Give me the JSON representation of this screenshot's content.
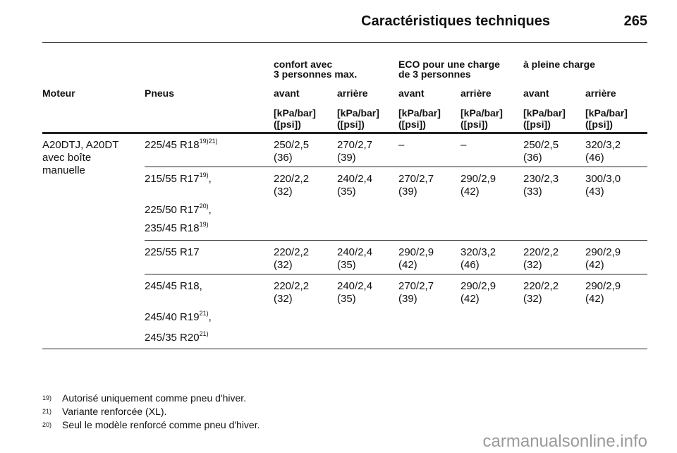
{
  "header": {
    "title": "Caractéristiques techniques",
    "page": "265"
  },
  "table": {
    "group_headers": [
      [
        "confort avec",
        "3 personnes max."
      ],
      [
        "ECO pour une charge",
        "de 3 personnes"
      ],
      [
        "à pleine charge"
      ]
    ],
    "columns": [
      "Moteur",
      "Pneus",
      "avant",
      "arrière",
      "avant",
      "arrière",
      "avant",
      "arrière"
    ],
    "units": [
      [
        "[kPa/bar]",
        "([psi])"
      ],
      [
        "[kPa/bar]",
        "([psi])"
      ],
      [
        "[kPa/bar]",
        "([psi])"
      ],
      [
        "[kPa/bar]",
        "([psi])"
      ],
      [
        "[kPa/bar]",
        "([psi])"
      ],
      [
        "[kPa/bar]",
        "([psi])"
      ]
    ],
    "engine": [
      "A20DTJ, A20DT",
      "avec boîte",
      "manuelle"
    ],
    "groups": [
      {
        "tires": [
          {
            "text": "225/45 R18",
            "sup": "19)21)"
          }
        ],
        "values": [
          [
            "250/2,5",
            "(36)"
          ],
          [
            "270/2,7",
            "(39)"
          ],
          [
            "–"
          ],
          [
            "–"
          ],
          [
            "250/2,5",
            "(36)"
          ],
          [
            "320/3,2",
            "(46)"
          ]
        ]
      },
      {
        "tires": [
          {
            "text": "215/55 R17",
            "sup": "19)",
            "suffix": ","
          },
          {
            "text": "225/50 R17",
            "sup": "20)",
            "suffix": ","
          },
          {
            "text": "235/45 R18",
            "sup": "19)"
          }
        ],
        "values": [
          [
            "220/2,2",
            "(32)"
          ],
          [
            "240/2,4",
            "(35)"
          ],
          [
            "270/2,7",
            "(39)"
          ],
          [
            "290/2,9",
            "(42)"
          ],
          [
            "230/2,3",
            "(33)"
          ],
          [
            "300/3,0",
            "(43)"
          ]
        ]
      },
      {
        "tires": [
          {
            "text": "225/55 R17"
          }
        ],
        "values": [
          [
            "220/2,2",
            "(32)"
          ],
          [
            "240/2,4",
            "(35)"
          ],
          [
            "290/2,9",
            "(42)"
          ],
          [
            "320/3,2",
            "(46)"
          ],
          [
            "220/2,2",
            "(32)"
          ],
          [
            "290/2,9",
            "(42)"
          ]
        ]
      },
      {
        "tires": [
          {
            "text": "245/45 R18,"
          },
          {
            "text": "245/40 R19",
            "sup": "21)",
            "suffix": ","
          },
          {
            "text": "245/35 R20",
            "sup": "21)"
          }
        ],
        "values": [
          [
            "220/2,2",
            "(32)"
          ],
          [
            "240/2,4",
            "(35)"
          ],
          [
            "270/2,7",
            "(39)"
          ],
          [
            "290/2,9",
            "(42)"
          ],
          [
            "220/2,2",
            "(32)"
          ],
          [
            "290/2,9",
            "(42)"
          ]
        ]
      }
    ]
  },
  "footnotes": [
    {
      "mark": "19)",
      "text": "Autorisé uniquement comme pneu d'hiver."
    },
    {
      "mark": "21)",
      "text": "Variante renforcée (XL)."
    },
    {
      "mark": "20)",
      "text": "Seul le modèle renforcé comme pneu d'hiver."
    }
  ],
  "watermark": "carmanualsonline.info"
}
